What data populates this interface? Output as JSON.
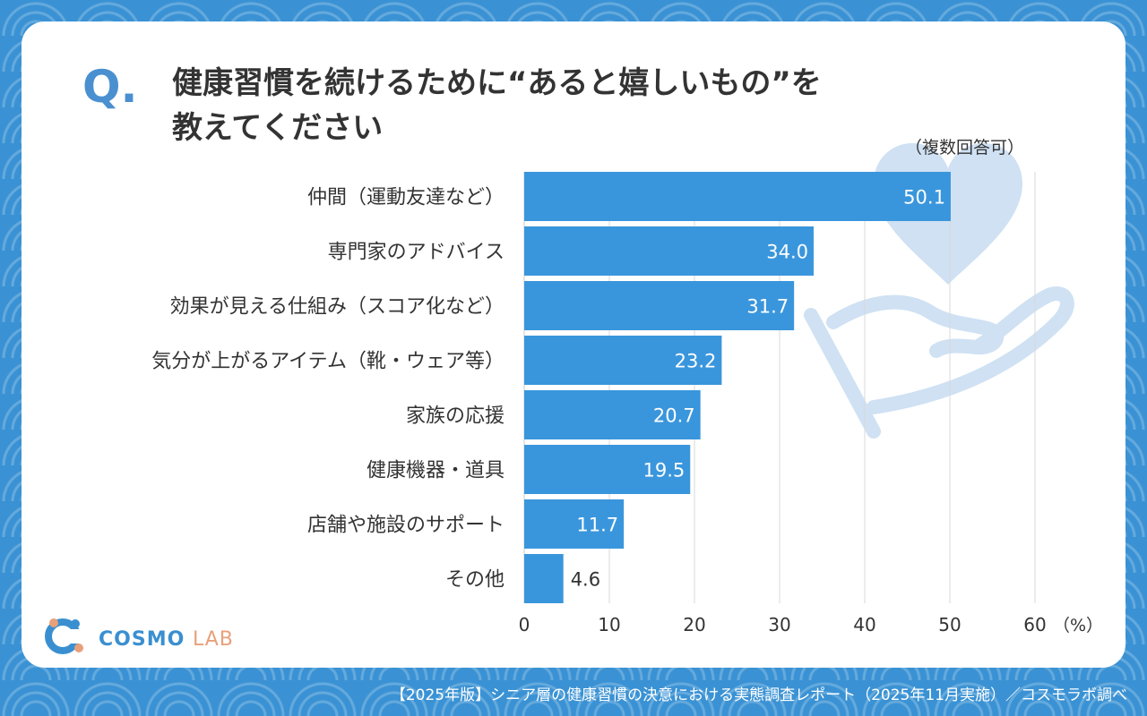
{
  "question": {
    "mark": "Q.",
    "title_line1": "健康習慣を続けるために“あると嬉しいもの”を",
    "title_line2": "教えてください"
  },
  "note": "（複数回答可）",
  "brand": {
    "name_part1": "COSMO",
    "name_part2": "LAB"
  },
  "footer": "【2025年版】シニア層の健康習慣の決意における実態調査レポート（2025年11月実施）／コスモラボ調べ",
  "colors": {
    "bar": "#3a96dc",
    "background": "#3a92d4",
    "decoration": "#cfe1f3",
    "grid": "#d9d9d9"
  },
  "icons": [
    "heart-icon",
    "hand-icon",
    "logo-icon"
  ],
  "chart_data": {
    "type": "bar",
    "orientation": "horizontal",
    "categories": [
      "仲間（運動友達など）",
      "専門家のアドバイス",
      "効果が見える仕組み（スコア化など）",
      "気分が上がるアイテム（靴・ウェア等）",
      "家族の応援",
      "健康機器・道具",
      "店舗や施設のサポート",
      "その他"
    ],
    "values": [
      50.1,
      34.0,
      31.7,
      23.2,
      20.7,
      19.5,
      11.7,
      4.6
    ],
    "value_labels": [
      "50.1",
      "34.0",
      "31.7",
      "23.2",
      "20.7",
      "19.5",
      "11.7",
      "4.6"
    ],
    "x_ticks": [
      "0",
      "10",
      "20",
      "30",
      "40",
      "50",
      "60"
    ],
    "x_unit": "（%）",
    "xlim": [
      0,
      60
    ],
    "grid": true
  }
}
